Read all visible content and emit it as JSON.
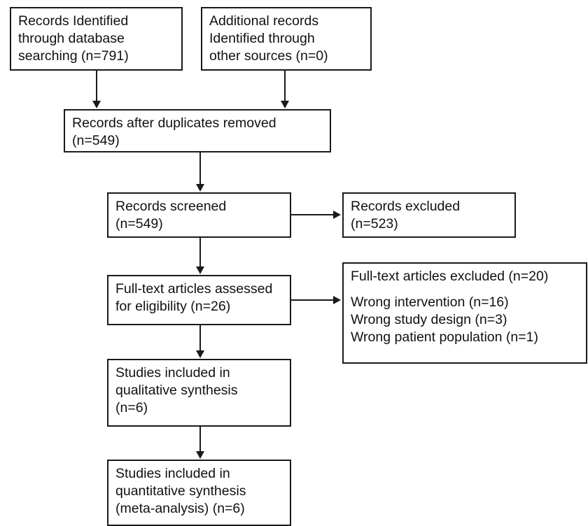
{
  "diagram": {
    "identified_database": [
      "Records Identified",
      "through database",
      "searching (n=791)"
    ],
    "identified_other": [
      "Additional records",
      "Identified through",
      "other sources (n=0)"
    ],
    "after_duplicates": [
      "Records after duplicates removed",
      "(n=549)"
    ],
    "screened": [
      "Records screened",
      "(n=549)"
    ],
    "excluded": [
      "Records excluded",
      "(n=523)"
    ],
    "fulltext_assessed": [
      "Full-text articles assessed",
      "for eligibility (n=26)"
    ],
    "fulltext_excluded": {
      "heading": "Full-text articles excluded (n=20)",
      "reasons": [
        "Wrong intervention (n=16)",
        "Wrong study design (n=3)",
        "Wrong patient population (n=1)"
      ]
    },
    "qualitative": [
      "Studies included in",
      "qualitative synthesis",
      "(n=6)"
    ],
    "quantitative": [
      "Studies included in",
      "quantitative synthesis",
      "(meta-analysis) (n=6)"
    ]
  }
}
